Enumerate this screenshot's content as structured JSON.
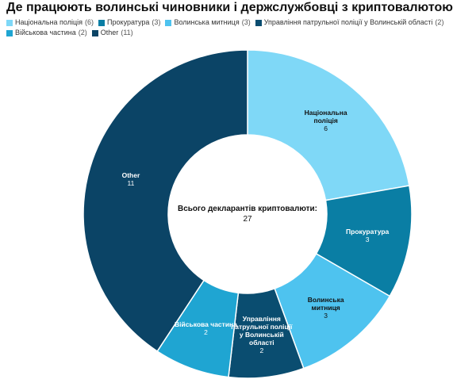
{
  "chart_data": {
    "type": "donut",
    "title": "Де працюють волинські чиновники і держслужбовці з криптовалютою",
    "categories": [
      "Національна поліція",
      "Прокуратура",
      "Волинська митниця",
      "Управління патрульної поліції у Волинській області",
      "Військова частина",
      "Other"
    ],
    "values": [
      6,
      3,
      3,
      2,
      2,
      11
    ],
    "colors": [
      "#7fd8f7",
      "#0a7ea4",
      "#4ec3ef",
      "#0a4d70",
      "#1fa5d2",
      "#0b4466"
    ],
    "center_label": "Всього декларантів криптовалюти:",
    "center_value": 27
  }
}
